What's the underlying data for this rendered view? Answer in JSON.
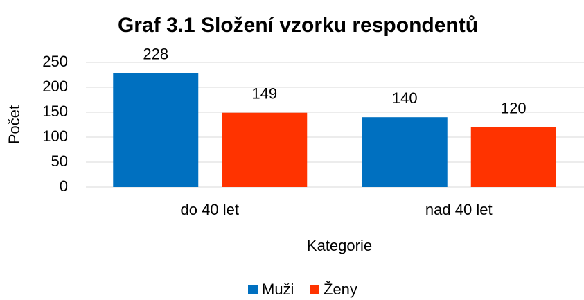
{
  "chart_data": {
    "type": "bar",
    "title": "Graf 3.1 Složení vzorku respondentů",
    "categories": [
      "do 40 let",
      "nad 40 let"
    ],
    "series": [
      {
        "name": "Muži",
        "color": "#0070c0",
        "values": [
          228,
          140
        ]
      },
      {
        "name": "Ženy",
        "color": "#ff3300",
        "values": [
          149,
          120
        ]
      }
    ],
    "xlabel": "Kategorie",
    "ylabel": "Počet",
    "ylim": [
      0,
      250
    ],
    "yticks": [
      0,
      50,
      100,
      150,
      200,
      250
    ],
    "grid": true,
    "legend": "bottom"
  }
}
